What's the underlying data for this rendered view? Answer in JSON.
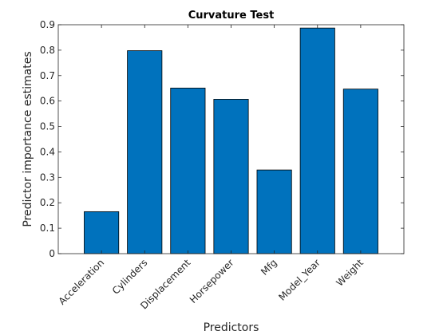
{
  "chart_data": {
    "type": "bar",
    "title": "Curvature Test",
    "xlabel": "Predictors",
    "ylabel": "Predictor importance estimates",
    "categories": [
      "Acceleration",
      "Cylinders",
      "Displacement",
      "Horsepower",
      "Mfg",
      "Model_Year",
      "Weight"
    ],
    "values": [
      0.165,
      0.798,
      0.651,
      0.607,
      0.329,
      0.887,
      0.647
    ],
    "ylim": [
      0,
      0.9
    ],
    "yticks": [
      "0",
      "0.1",
      "0.2",
      "0.3",
      "0.4",
      "0.5",
      "0.6",
      "0.7",
      "0.8",
      "0.9"
    ],
    "grid": false,
    "bar_color": "#0072BD"
  }
}
